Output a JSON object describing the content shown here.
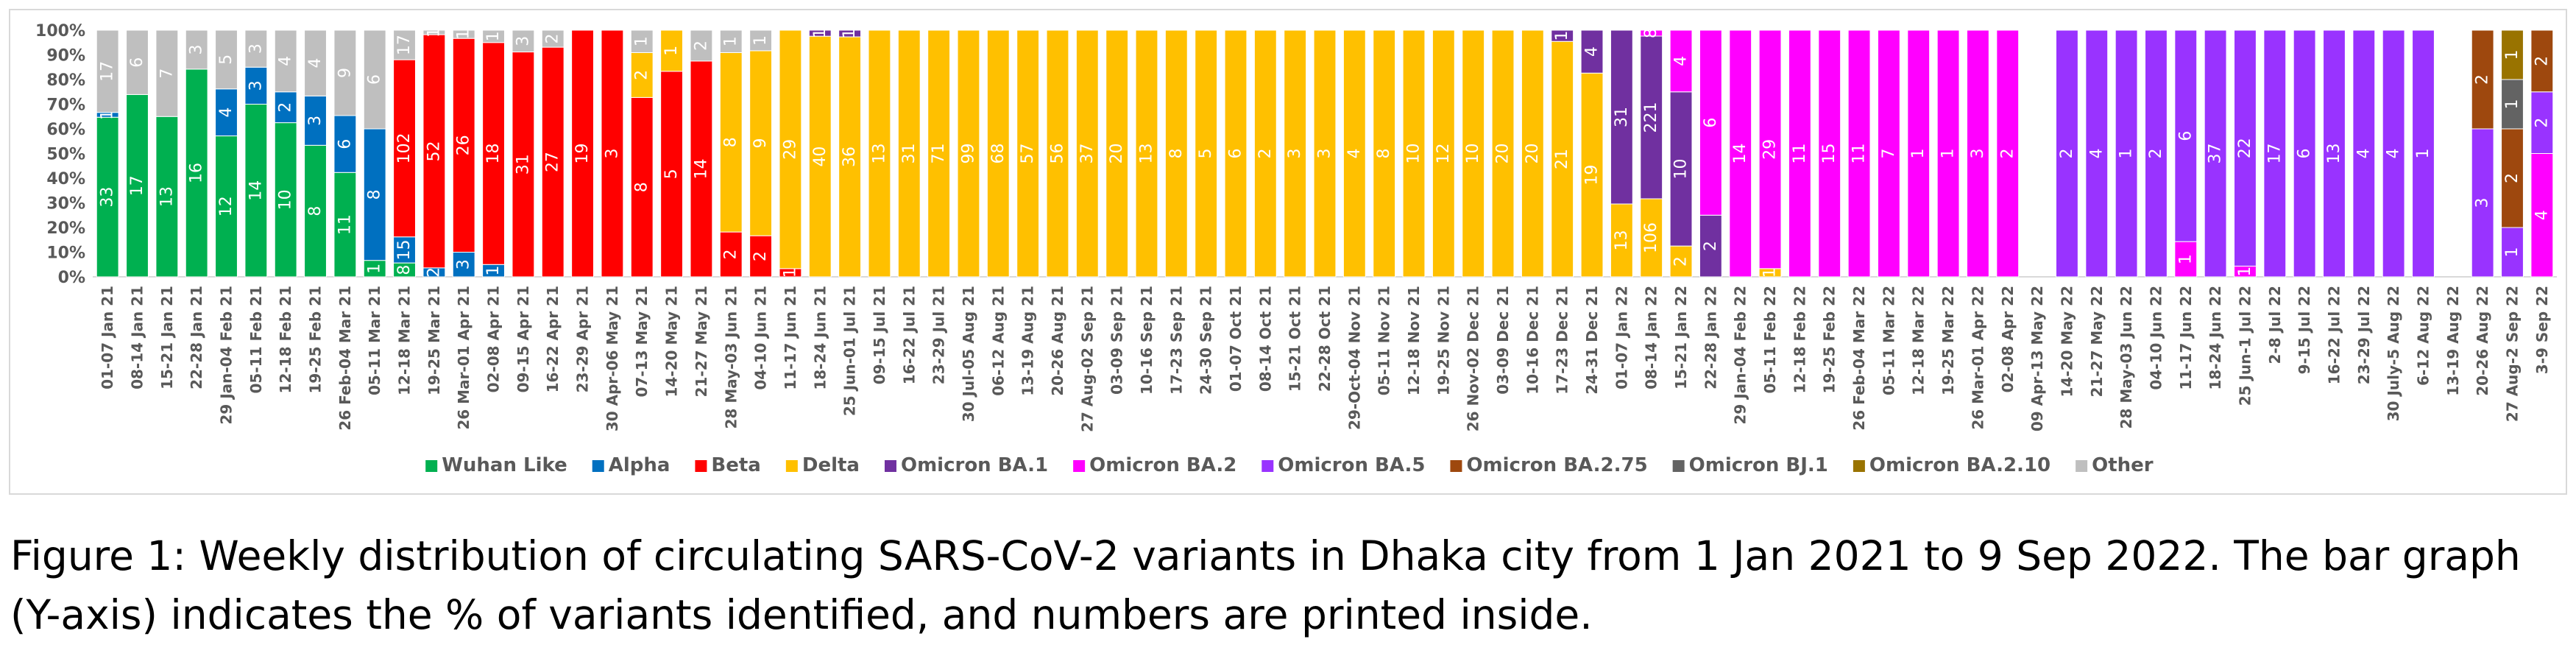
{
  "caption": "Figure 1: Weekly distribution of circulating SARS-CoV-2 variants in Dhaka city from 1 Jan 2021 to 9 Sep 2022. The bar graph (Y-axis) indicates the % of variants identified, and numbers are printed inside.",
  "chart_data": {
    "type": "bar",
    "stacked": true,
    "percent": true,
    "title": "",
    "xlabel": "",
    "ylabel": "",
    "ylim": [
      0,
      100
    ],
    "y_ticks": [
      "0%",
      "10%",
      "20%",
      "30%",
      "40%",
      "50%",
      "60%",
      "70%",
      "80%",
      "90%",
      "100%"
    ],
    "grid": false,
    "legend_position": "bottom",
    "series": [
      {
        "name": "Wuhan Like",
        "color": "#00b050"
      },
      {
        "name": "Alpha",
        "color": "#0070c0"
      },
      {
        "name": "Beta",
        "color": "#ff0000"
      },
      {
        "name": "Delta",
        "color": "#ffc000"
      },
      {
        "name": "Omicron BA.1",
        "color": "#7030a0"
      },
      {
        "name": "Omicron BA.2",
        "color": "#ff00ff"
      },
      {
        "name": "Omicron BA.5",
        "color": "#9933ff"
      },
      {
        "name": "Omicron BA.2.75",
        "color": "#9e480e"
      },
      {
        "name": "Omicron BJ.1",
        "color": "#636363"
      },
      {
        "name": "Omicron BA.2.10",
        "color": "#997300"
      },
      {
        "name": "Other",
        "color": "#bfbfbf"
      }
    ],
    "categories": [
      "01-07 Jan 21",
      "08-14 Jan 21",
      "15-21 Jan 21",
      "22-28 Jan 21",
      "29 Jan-04 Feb 21",
      "05-11 Feb 21",
      "12-18 Feb 21",
      "19-25 Feb 21",
      "26 Feb-04 Mar 21",
      "05-11 Mar 21",
      "12-18 Mar 21",
      "19-25 Mar 21",
      "26 Mar-01 Apr 21",
      "02-08 Apr 21",
      "09-15 Apr 21",
      "16-22 Apr 21",
      "23-29 Apr 21",
      "30 Apr-06 May 21",
      "07-13 May 21",
      "14-20 May 21",
      "21-27 May 21",
      "28 May-03 Jun 21",
      "04-10 Jun 21",
      "11-17 Jun 21",
      "18-24 Jun 21",
      "25 Jun-01 Jul 21",
      "09-15 Jul 21",
      "16-22 Jul 21",
      "23-29 Jul 21",
      "30 Jul-05 Aug 21",
      "06-12 Aug 21",
      "13-19 Aug 21",
      "20-26 Aug 21",
      "27 Aug-02 Sep 21",
      "03-09 Sep 21",
      "10-16 Sep 21",
      "17-23 Sep 21",
      "24-30 Sep 21",
      "01-07 Oct 21",
      "08-14 Oct 21",
      "15-21 Oct 21",
      "22-28 Oct 21",
      "29-Oct-04 Nov 21",
      "05-11 Nov 21",
      "12-18 Nov 21",
      "19-25 Nov 21",
      "26 Nov-02 Dec 21",
      "03-09 Dec 21",
      "10-16 Dec 21",
      "17-23 Dec 21",
      "24-31 Dec 21",
      "01-07 Jan 22",
      "08-14 Jan 22",
      "15-21 Jan 22",
      "22-28 Jan 22",
      "29 Jan-04 Feb 22",
      "05-11 Feb 22",
      "12-18 Feb 22",
      "19-25 Feb 22",
      "26 Feb-04 Mar 22",
      "05-11 Mar 22",
      "12-18 Mar 22",
      "19-25 Mar 22",
      "26 Mar-01 Apr 22",
      "02-08 Apr 22",
      "09 Apr-13 May 22",
      "14-20 May 22",
      "21-27 May 22",
      "28 May-03 Jun 22",
      "04-10 Jun 22",
      "11-17 Jun 22",
      "18-24 Jun 22",
      "25 Jun-1 Jul 22",
      "2-8 Jul 22",
      "9-15 Jul 22",
      "16-22 Jul 22",
      "23-29 Jul 22",
      "30 July-5 Aug 22",
      "6-12 Aug 22",
      "13-19 Aug 22",
      "20-26 Aug 22",
      "27 Aug-2 Sep 22",
      "3-9 Sep 22"
    ],
    "bars": [
      {
        "segments": [
          {
            "series": "Wuhan Like",
            "value": 33
          },
          {
            "series": "Alpha",
            "value": 1
          },
          {
            "series": "Other",
            "value": 17
          }
        ]
      },
      {
        "segments": [
          {
            "series": "Wuhan Like",
            "value": 17
          },
          {
            "series": "Other",
            "value": 6
          }
        ]
      },
      {
        "segments": [
          {
            "series": "Wuhan Like",
            "value": 13
          },
          {
            "series": "Other",
            "value": 7
          }
        ]
      },
      {
        "segments": [
          {
            "series": "Wuhan Like",
            "value": 16
          },
          {
            "series": "Other",
            "value": 3
          }
        ]
      },
      {
        "segments": [
          {
            "series": "Wuhan Like",
            "value": 12
          },
          {
            "series": "Alpha",
            "value": 4
          },
          {
            "series": "Other",
            "value": 5
          }
        ]
      },
      {
        "segments": [
          {
            "series": "Wuhan Like",
            "value": 14
          },
          {
            "series": "Alpha",
            "value": 3
          },
          {
            "series": "Other",
            "value": 3
          }
        ]
      },
      {
        "segments": [
          {
            "series": "Wuhan Like",
            "value": 10
          },
          {
            "series": "Alpha",
            "value": 2
          },
          {
            "series": "Other",
            "value": 4
          }
        ]
      },
      {
        "segments": [
          {
            "series": "Wuhan Like",
            "value": 8
          },
          {
            "series": "Alpha",
            "value": 3
          },
          {
            "series": "Other",
            "value": 4
          }
        ]
      },
      {
        "segments": [
          {
            "series": "Wuhan Like",
            "value": 11
          },
          {
            "series": "Alpha",
            "value": 6
          },
          {
            "series": "Other",
            "value": 9
          }
        ]
      },
      {
        "segments": [
          {
            "series": "Wuhan Like",
            "value": 1
          },
          {
            "series": "Alpha",
            "value": 8
          },
          {
            "series": "Other",
            "value": 6
          }
        ]
      },
      {
        "segments": [
          {
            "series": "Wuhan Like",
            "value": 8
          },
          {
            "series": "Alpha",
            "value": 15
          },
          {
            "series": "Beta",
            "value": 102
          },
          {
            "series": "Other",
            "value": 17
          }
        ]
      },
      {
        "segments": [
          {
            "series": "Alpha",
            "value": 2
          },
          {
            "series": "Beta",
            "value": 52
          },
          {
            "series": "Other",
            "value": 1
          }
        ]
      },
      {
        "segments": [
          {
            "series": "Alpha",
            "value": 3
          },
          {
            "series": "Beta",
            "value": 26
          },
          {
            "series": "Other",
            "value": 1
          }
        ]
      },
      {
        "segments": [
          {
            "series": "Alpha",
            "value": 1
          },
          {
            "series": "Beta",
            "value": 18
          },
          {
            "series": "Other",
            "value": 1
          }
        ]
      },
      {
        "segments": [
          {
            "series": "Beta",
            "value": 31
          },
          {
            "series": "Other",
            "value": 3
          }
        ]
      },
      {
        "segments": [
          {
            "series": "Beta",
            "value": 27
          },
          {
            "series": "Other",
            "value": 2
          }
        ]
      },
      {
        "segments": [
          {
            "series": "Beta",
            "value": 19
          }
        ]
      },
      {
        "segments": [
          {
            "series": "Beta",
            "value": 3
          }
        ]
      },
      {
        "segments": [
          {
            "series": "Beta",
            "value": 8
          },
          {
            "series": "Delta",
            "value": 2
          },
          {
            "series": "Other",
            "value": 1
          }
        ]
      },
      {
        "segments": [
          {
            "series": "Beta",
            "value": 5
          },
          {
            "series": "Delta",
            "value": 1
          }
        ]
      },
      {
        "segments": [
          {
            "series": "Beta",
            "value": 14
          },
          {
            "series": "Other",
            "value": 2
          }
        ]
      },
      {
        "segments": [
          {
            "series": "Beta",
            "value": 2
          },
          {
            "series": "Delta",
            "value": 8
          },
          {
            "series": "Other",
            "value": 1
          }
        ]
      },
      {
        "segments": [
          {
            "series": "Beta",
            "value": 2
          },
          {
            "series": "Delta",
            "value": 9
          },
          {
            "series": "Other",
            "value": 1
          }
        ]
      },
      {
        "segments": [
          {
            "series": "Beta",
            "value": 1
          },
          {
            "series": "Delta",
            "value": 29
          }
        ]
      },
      {
        "segments": [
          {
            "series": "Delta",
            "value": 40
          },
          {
            "series": "Omicron BA.1",
            "value": 1
          }
        ]
      },
      {
        "segments": [
          {
            "series": "Delta",
            "value": 36
          },
          {
            "series": "Omicron BA.1",
            "value": 1
          }
        ]
      },
      {
        "segments": [
          {
            "series": "Delta",
            "value": 13
          }
        ]
      },
      {
        "segments": [
          {
            "series": "Delta",
            "value": 31
          }
        ]
      },
      {
        "segments": [
          {
            "series": "Delta",
            "value": 71
          }
        ]
      },
      {
        "segments": [
          {
            "series": "Delta",
            "value": 99
          }
        ]
      },
      {
        "segments": [
          {
            "series": "Delta",
            "value": 68
          }
        ]
      },
      {
        "segments": [
          {
            "series": "Delta",
            "value": 57
          }
        ]
      },
      {
        "segments": [
          {
            "series": "Delta",
            "value": 56
          }
        ]
      },
      {
        "segments": [
          {
            "series": "Delta",
            "value": 37
          }
        ]
      },
      {
        "segments": [
          {
            "series": "Delta",
            "value": 20
          }
        ]
      },
      {
        "segments": [
          {
            "series": "Delta",
            "value": 13
          }
        ]
      },
      {
        "segments": [
          {
            "series": "Delta",
            "value": 8
          }
        ]
      },
      {
        "segments": [
          {
            "series": "Delta",
            "value": 5
          }
        ]
      },
      {
        "segments": [
          {
            "series": "Delta",
            "value": 6
          }
        ]
      },
      {
        "segments": [
          {
            "series": "Delta",
            "value": 2
          }
        ]
      },
      {
        "segments": [
          {
            "series": "Delta",
            "value": 3
          }
        ]
      },
      {
        "segments": [
          {
            "series": "Delta",
            "value": 3
          }
        ]
      },
      {
        "segments": [
          {
            "series": "Delta",
            "value": 4
          }
        ]
      },
      {
        "segments": [
          {
            "series": "Delta",
            "value": 8
          }
        ]
      },
      {
        "segments": [
          {
            "series": "Delta",
            "value": 10
          }
        ]
      },
      {
        "segments": [
          {
            "series": "Delta",
            "value": 12
          }
        ]
      },
      {
        "segments": [
          {
            "series": "Delta",
            "value": 10
          }
        ]
      },
      {
        "segments": [
          {
            "series": "Delta",
            "value": 20
          }
        ]
      },
      {
        "segments": [
          {
            "series": "Delta",
            "value": 20
          }
        ]
      },
      {
        "segments": [
          {
            "series": "Delta",
            "value": 21
          },
          {
            "series": "Omicron BA.1",
            "value": 1
          }
        ]
      },
      {
        "segments": [
          {
            "series": "Delta",
            "value": 19
          },
          {
            "series": "Omicron BA.1",
            "value": 4
          }
        ]
      },
      {
        "segments": [
          {
            "series": "Delta",
            "value": 13
          },
          {
            "series": "Omicron BA.1",
            "value": 31
          }
        ]
      },
      {
        "segments": [
          {
            "series": "Delta",
            "value": 106
          },
          {
            "series": "Omicron BA.1",
            "value": 221
          },
          {
            "series": "Omicron BA.2",
            "value": 8
          }
        ]
      },
      {
        "segments": [
          {
            "series": "Delta",
            "value": 2
          },
          {
            "series": "Omicron BA.1",
            "value": 10
          },
          {
            "series": "Omicron BA.2",
            "value": 4
          }
        ]
      },
      {
        "segments": [
          {
            "series": "Omicron BA.1",
            "value": 2
          },
          {
            "series": "Omicron BA.2",
            "value": 6
          }
        ]
      },
      {
        "segments": [
          {
            "series": "Omicron BA.2",
            "value": 14
          }
        ]
      },
      {
        "segments": [
          {
            "series": "Delta",
            "value": 1
          },
          {
            "series": "Omicron BA.2",
            "value": 29
          }
        ]
      },
      {
        "segments": [
          {
            "series": "Omicron BA.2",
            "value": 11
          }
        ]
      },
      {
        "segments": [
          {
            "series": "Omicron BA.2",
            "value": 15
          }
        ]
      },
      {
        "segments": [
          {
            "series": "Omicron BA.2",
            "value": 11
          }
        ]
      },
      {
        "segments": [
          {
            "series": "Omicron BA.2",
            "value": 7
          }
        ]
      },
      {
        "segments": [
          {
            "series": "Omicron BA.2",
            "value": 1
          }
        ]
      },
      {
        "segments": [
          {
            "series": "Omicron BA.2",
            "value": 1
          }
        ]
      },
      {
        "segments": [
          {
            "series": "Omicron BA.2",
            "value": 3
          }
        ]
      },
      {
        "segments": [
          {
            "series": "Omicron BA.2",
            "value": 2
          }
        ]
      },
      {
        "segments": []
      },
      {
        "segments": [
          {
            "series": "Omicron BA.5",
            "value": 2
          }
        ]
      },
      {
        "segments": [
          {
            "series": "Omicron BA.5",
            "value": 4
          }
        ]
      },
      {
        "segments": [
          {
            "series": "Omicron BA.5",
            "value": 1
          }
        ]
      },
      {
        "segments": [
          {
            "series": "Omicron BA.5",
            "value": 2
          }
        ]
      },
      {
        "segments": [
          {
            "series": "Omicron BA.2",
            "value": 1
          },
          {
            "series": "Omicron BA.5",
            "value": 6
          }
        ]
      },
      {
        "segments": [
          {
            "series": "Omicron BA.5",
            "value": 37
          }
        ]
      },
      {
        "segments": [
          {
            "series": "Omicron BA.2",
            "value": 1
          },
          {
            "series": "Omicron BA.5",
            "value": 22
          }
        ]
      },
      {
        "segments": [
          {
            "series": "Omicron BA.5",
            "value": 17
          }
        ]
      },
      {
        "segments": [
          {
            "series": "Omicron BA.5",
            "value": 6
          }
        ]
      },
      {
        "segments": [
          {
            "series": "Omicron BA.5",
            "value": 13
          }
        ]
      },
      {
        "segments": [
          {
            "series": "Omicron BA.5",
            "value": 4
          }
        ]
      },
      {
        "segments": [
          {
            "series": "Omicron BA.5",
            "value": 4
          }
        ]
      },
      {
        "segments": [
          {
            "series": "Omicron BA.5",
            "value": 1
          }
        ]
      },
      {
        "segments": []
      },
      {
        "segments": [
          {
            "series": "Omicron BA.5",
            "value": 3
          },
          {
            "series": "Omicron BA.2.75",
            "value": 2
          }
        ]
      },
      {
        "segments": [
          {
            "series": "Omicron BA.5",
            "value": 1
          },
          {
            "series": "Omicron BA.2.75",
            "value": 2
          },
          {
            "series": "Omicron BJ.1",
            "value": 1
          },
          {
            "series": "Omicron BA.2.10",
            "value": 1
          }
        ]
      },
      {
        "segments": [
          {
            "series": "Omicron BA.2",
            "value": 4
          },
          {
            "series": "Omicron BA.5",
            "value": 2
          },
          {
            "series": "Omicron BA.2.75",
            "value": 2
          }
        ]
      }
    ]
  }
}
